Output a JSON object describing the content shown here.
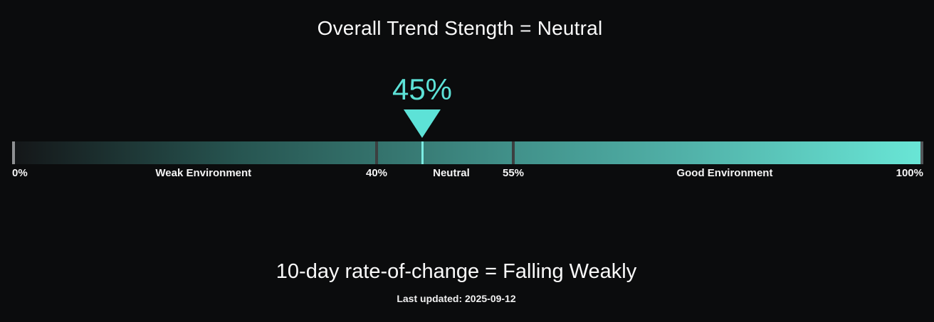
{
  "header": {
    "title": "Overall Trend Stength = Neutral"
  },
  "gauge": {
    "value_label": "45%",
    "value_percent": 45,
    "axis_labels": {
      "start": "0%",
      "weak": "Weak Environment",
      "t40": "40%",
      "neutral": "Neutral",
      "t55": "55%",
      "good": "Good Environment",
      "end": "100%"
    }
  },
  "footer": {
    "subtitle": "10-day rate-of-change = Falling Weakly",
    "last_updated": "Last updated: 2025-09-12"
  },
  "colors": {
    "background": "#0b0c0d",
    "text": "#fafafa",
    "accent_cyan": "#5de2d7",
    "marker_line": "#7cece3",
    "bar_gradient_start": "#141618",
    "bar_gradient_end": "#69e6d6",
    "tick_start": "#8f9193",
    "tick_threshold": "#3c3f40",
    "tick_end": "#53575a"
  },
  "chart_data": {
    "type": "bar",
    "subtype": "horizontal-gauge-bullet",
    "title": "Overall Trend Stength = Neutral",
    "value": 45,
    "value_label": "45%",
    "unit": "%",
    "axis_range": [
      0,
      100
    ],
    "tick_values": [
      0,
      40,
      55,
      100
    ],
    "zones": [
      {
        "label": "Weak Environment",
        "from": 0,
        "to": 40
      },
      {
        "label": "Neutral",
        "from": 40,
        "to": 55
      },
      {
        "label": "Good Environment",
        "from": 55,
        "to": 100
      }
    ],
    "bar_fill": "linear gradient dark #141618 at 0% to bright teal #69e6d6 at 100%",
    "marker": {
      "shape": "down-triangle",
      "position": 45,
      "color": "#5de2d7"
    },
    "legend": "none",
    "grid": false,
    "annotations": [
      "10-day rate-of-change = Falling Weakly",
      "Last updated: 2025-09-12"
    ]
  }
}
